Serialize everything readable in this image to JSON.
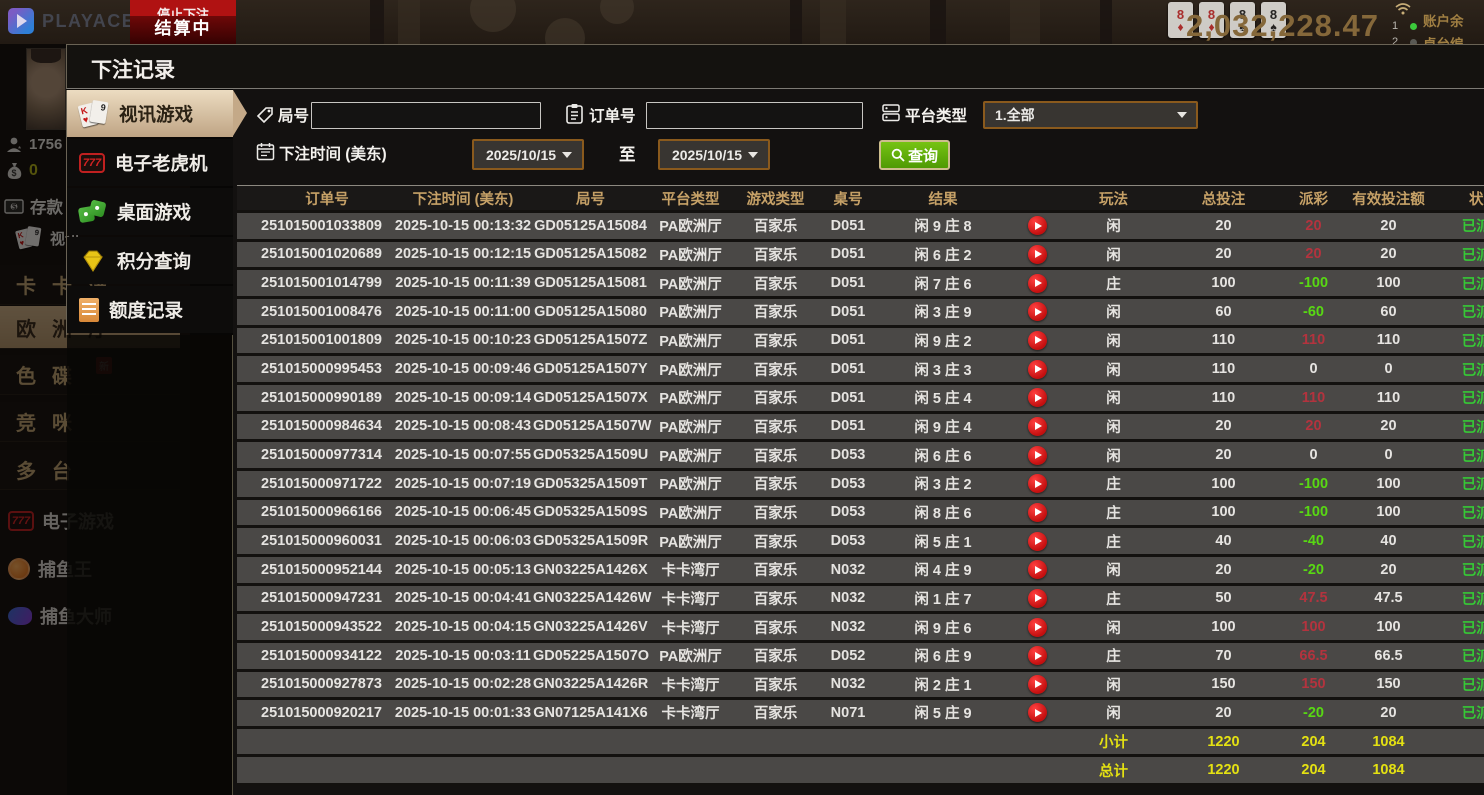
{
  "topbar": {
    "logo_text": "PLAYACE",
    "banner_top": "停止下注",
    "banner_bottom": "结算中",
    "cards": [
      {
        "rank": "8",
        "suit": "♦",
        "color": "red"
      },
      {
        "rank": "8",
        "suit": "♦",
        "color": "red"
      },
      {
        "rank": "8",
        "suit": "♠",
        "color": "black"
      },
      {
        "rank": "8",
        "suit": "♠",
        "color": "black"
      }
    ],
    "balance_big": "2,032,228.47",
    "account_balance_label": "账户余",
    "table_number_label": "桌台编",
    "seat_1": "1",
    "seat_2": "2"
  },
  "lobby": {
    "user_id": "1756",
    "coin_balance": "0",
    "deposit_label": "存款",
    "video_label": "视讯",
    "new_badge": "新",
    "menu": [
      {
        "label": "卡卡湾"
      },
      {
        "label": "欧洲厅",
        "selected": true
      },
      {
        "label": "色碟",
        "badge": "新"
      },
      {
        "label": "竞咪"
      },
      {
        "label": "多台"
      },
      {
        "label": "电子游戏"
      },
      {
        "label": "捕鱼王"
      },
      {
        "label": "捕鱼大师"
      }
    ]
  },
  "modal": {
    "title": "下注记录",
    "menu": [
      {
        "label": "视讯游戏",
        "selected": true
      },
      {
        "label": "电子老虎机",
        "selected": false
      },
      {
        "label": "桌面游戏",
        "selected": false
      },
      {
        "label": "积分查询",
        "selected": false
      },
      {
        "label": "额度记录",
        "selected": false
      }
    ],
    "filters": {
      "round_label": "局号",
      "round_value": "",
      "order_label": "订单号",
      "order_value": "",
      "platform_label": "平台类型",
      "platform_value": "1.全部",
      "time_label": "下注时间 (美东)",
      "date_from": "2025/10/15",
      "to_label": "至",
      "date_to": "2025/10/15",
      "search_label": "查询"
    },
    "table": {
      "headers": [
        "订单号",
        "下注时间 (美东)",
        "局号",
        "平台类型",
        "游戏类型",
        "桌号",
        "结果",
        "",
        "玩法",
        "总投注",
        "派彩",
        "有效投注额",
        "状态"
      ],
      "rows": [
        {
          "order": "251015001033809",
          "time": "2025-10-15 00:13:32",
          "round": "GD05125A15084",
          "platform": "PA欧洲厅",
          "game": "百家乐",
          "table": "D051",
          "result": "闲 9 庄 8",
          "bet": "闲",
          "total": "20",
          "payout": "20",
          "pc": "win",
          "valid": "20",
          "status": "已派彩"
        },
        {
          "order": "251015001020689",
          "time": "2025-10-15 00:12:15",
          "round": "GD05125A15082",
          "platform": "PA欧洲厅",
          "game": "百家乐",
          "table": "D051",
          "result": "闲 6 庄 2",
          "bet": "闲",
          "total": "20",
          "payout": "20",
          "pc": "win",
          "valid": "20",
          "status": "已派彩"
        },
        {
          "order": "251015001014799",
          "time": "2025-10-15 00:11:39",
          "round": "GD05125A15081",
          "platform": "PA欧洲厅",
          "game": "百家乐",
          "table": "D051",
          "result": "闲 7 庄 6",
          "bet": "庄",
          "total": "100",
          "payout": "-100",
          "pc": "loss",
          "valid": "100",
          "status": "已派彩"
        },
        {
          "order": "251015001008476",
          "time": "2025-10-15 00:11:00",
          "round": "GD05125A15080",
          "platform": "PA欧洲厅",
          "game": "百家乐",
          "table": "D051",
          "result": "闲 3 庄 9",
          "bet": "闲",
          "total": "60",
          "payout": "-60",
          "pc": "loss",
          "valid": "60",
          "status": "已派彩"
        },
        {
          "order": "251015001001809",
          "time": "2025-10-15 00:10:23",
          "round": "GD05125A1507Z",
          "platform": "PA欧洲厅",
          "game": "百家乐",
          "table": "D051",
          "result": "闲 9 庄 2",
          "bet": "闲",
          "total": "110",
          "payout": "110",
          "pc": "win",
          "valid": "110",
          "status": "已派彩"
        },
        {
          "order": "251015000995453",
          "time": "2025-10-15 00:09:46",
          "round": "GD05125A1507Y",
          "platform": "PA欧洲厅",
          "game": "百家乐",
          "table": "D051",
          "result": "闲 3 庄 3",
          "bet": "闲",
          "total": "110",
          "payout": "0",
          "pc": "zero",
          "valid": "0",
          "status": "已派彩"
        },
        {
          "order": "251015000990189",
          "time": "2025-10-15 00:09:14",
          "round": "GD05125A1507X",
          "platform": "PA欧洲厅",
          "game": "百家乐",
          "table": "D051",
          "result": "闲 5 庄 4",
          "bet": "闲",
          "total": "110",
          "payout": "110",
          "pc": "win",
          "valid": "110",
          "status": "已派彩"
        },
        {
          "order": "251015000984634",
          "time": "2025-10-15 00:08:43",
          "round": "GD05125A1507W",
          "platform": "PA欧洲厅",
          "game": "百家乐",
          "table": "D051",
          "result": "闲 9 庄 4",
          "bet": "闲",
          "total": "20",
          "payout": "20",
          "pc": "win",
          "valid": "20",
          "status": "已派彩"
        },
        {
          "order": "251015000977314",
          "time": "2025-10-15 00:07:55",
          "round": "GD05325A1509U",
          "platform": "PA欧洲厅",
          "game": "百家乐",
          "table": "D053",
          "result": "闲 6 庄 6",
          "bet": "闲",
          "total": "20",
          "payout": "0",
          "pc": "zero",
          "valid": "0",
          "status": "已派彩"
        },
        {
          "order": "251015000971722",
          "time": "2025-10-15 00:07:19",
          "round": "GD05325A1509T",
          "platform": "PA欧洲厅",
          "game": "百家乐",
          "table": "D053",
          "result": "闲 3 庄 2",
          "bet": "庄",
          "total": "100",
          "payout": "-100",
          "pc": "loss",
          "valid": "100",
          "status": "已派彩"
        },
        {
          "order": "251015000966166",
          "time": "2025-10-15 00:06:45",
          "round": "GD05325A1509S",
          "platform": "PA欧洲厅",
          "game": "百家乐",
          "table": "D053",
          "result": "闲 8 庄 6",
          "bet": "庄",
          "total": "100",
          "payout": "-100",
          "pc": "loss",
          "valid": "100",
          "status": "已派彩"
        },
        {
          "order": "251015000960031",
          "time": "2025-10-15 00:06:03",
          "round": "GD05325A1509R",
          "platform": "PA欧洲厅",
          "game": "百家乐",
          "table": "D053",
          "result": "闲 5 庄 1",
          "bet": "庄",
          "total": "40",
          "payout": "-40",
          "pc": "loss",
          "valid": "40",
          "status": "已派彩"
        },
        {
          "order": "251015000952144",
          "time": "2025-10-15 00:05:13",
          "round": "GN03225A1426X",
          "platform": "卡卡湾厅",
          "game": "百家乐",
          "table": "N032",
          "result": "闲 4 庄 9",
          "bet": "闲",
          "total": "20",
          "payout": "-20",
          "pc": "loss",
          "valid": "20",
          "status": "已派彩"
        },
        {
          "order": "251015000947231",
          "time": "2025-10-15 00:04:41",
          "round": "GN03225A1426W",
          "platform": "卡卡湾厅",
          "game": "百家乐",
          "table": "N032",
          "result": "闲 1 庄 7",
          "bet": "庄",
          "total": "50",
          "payout": "47.5",
          "pc": "win",
          "valid": "47.5",
          "status": "已派彩"
        },
        {
          "order": "251015000943522",
          "time": "2025-10-15 00:04:15",
          "round": "GN03225A1426V",
          "platform": "卡卡湾厅",
          "game": "百家乐",
          "table": "N032",
          "result": "闲 9 庄 6",
          "bet": "闲",
          "total": "100",
          "payout": "100",
          "pc": "win",
          "valid": "100",
          "status": "已派彩"
        },
        {
          "order": "251015000934122",
          "time": "2025-10-15 00:03:11",
          "round": "GD05225A1507O",
          "platform": "PA欧洲厅",
          "game": "百家乐",
          "table": "D052",
          "result": "闲 6 庄 9",
          "bet": "庄",
          "total": "70",
          "payout": "66.5",
          "pc": "win",
          "valid": "66.5",
          "status": "已派彩"
        },
        {
          "order": "251015000927873",
          "time": "2025-10-15 00:02:28",
          "round": "GN03225A1426R",
          "platform": "卡卡湾厅",
          "game": "百家乐",
          "table": "N032",
          "result": "闲 2 庄 1",
          "bet": "闲",
          "total": "150",
          "payout": "150",
          "pc": "win",
          "valid": "150",
          "status": "已派彩"
        },
        {
          "order": "251015000920217",
          "time": "2025-10-15 00:01:33",
          "round": "GN07125A141X6",
          "platform": "卡卡湾厅",
          "game": "百家乐",
          "table": "N071",
          "result": "闲 5 庄 9",
          "bet": "闲",
          "total": "20",
          "payout": "-20",
          "pc": "loss",
          "valid": "20",
          "status": "已派彩"
        }
      ],
      "subtotal": {
        "label": "小计",
        "total": "1220",
        "payout": "204",
        "valid": "1084"
      },
      "grand_total": {
        "label": "总计",
        "total": "1220",
        "payout": "204",
        "valid": "1084"
      }
    }
  },
  "colors": {
    "accent_tan": "#d9c4a4",
    "win_red": "#b3333e",
    "loss_green": "#58d813",
    "status_green": "#36c836",
    "summary_yellow": "#e4e112",
    "button_green": "#5fae0e"
  }
}
